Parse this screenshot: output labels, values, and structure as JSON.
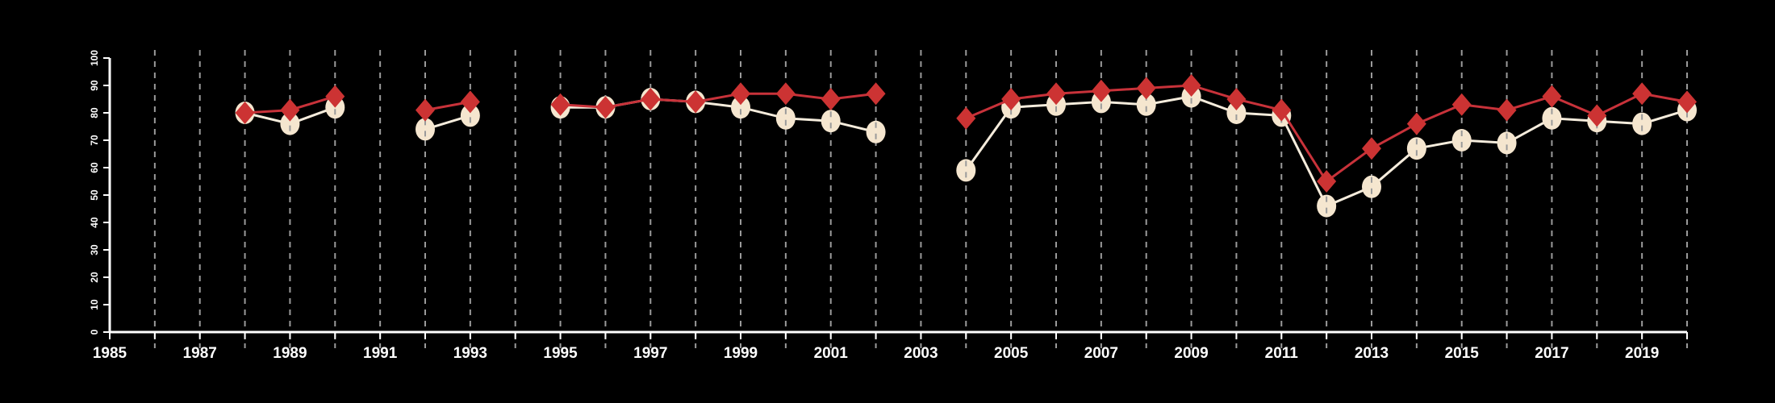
{
  "chart_data": {
    "type": "line",
    "title": "",
    "xlabel": "",
    "ylabel": "",
    "xlim": [
      1985,
      2020
    ],
    "ylim": [
      0,
      100
    ],
    "grid": "vertical dashed lines at every year",
    "x_ticks": [
      "1985",
      "1987",
      "1989",
      "1991",
      "1993",
      "1995",
      "1997",
      "1999",
      "2001",
      "2003",
      "2005",
      "2007",
      "2009",
      "2011",
      "2013",
      "2015",
      "2017",
      "2019"
    ],
    "y_ticks": [
      "0",
      "10",
      "20",
      "30",
      "40",
      "50",
      "60",
      "70",
      "80",
      "90",
      "100"
    ],
    "x": [
      1988,
      1989,
      1990,
      1992,
      1993,
      1995,
      1996,
      1997,
      1998,
      1999,
      2000,
      2001,
      2002,
      2004,
      2005,
      2006,
      2007,
      2008,
      2009,
      2010,
      2011,
      2012,
      2013,
      2014,
      2015,
      2016,
      2017,
      2018,
      2019,
      2020
    ],
    "segments": [
      [
        1988,
        1990
      ],
      [
        1992,
        1993
      ],
      [
        1995,
        2002
      ],
      [
        2004,
        2020
      ]
    ],
    "series": [
      {
        "name": "circle series",
        "marker": "circle",
        "color": "#f5e6cf",
        "line_color": "#f5ecdc",
        "values": [
          80,
          76,
          82,
          74,
          79,
          82,
          82,
          85,
          84,
          82,
          78,
          77,
          73,
          59,
          82,
          83,
          84,
          83,
          86,
          80,
          79,
          46,
          53,
          67,
          70,
          69,
          78,
          77,
          76,
          81
        ]
      },
      {
        "name": "diamond series",
        "marker": "diamond",
        "color": "#cc3333",
        "line_color": "#c8323a",
        "values": [
          80,
          81,
          86,
          81,
          84,
          83,
          82,
          85,
          84,
          87,
          87,
          85,
          87,
          78,
          85,
          87,
          88,
          89,
          90,
          85,
          81,
          55,
          67,
          76,
          83,
          81,
          86,
          79,
          87,
          84
        ]
      }
    ]
  }
}
